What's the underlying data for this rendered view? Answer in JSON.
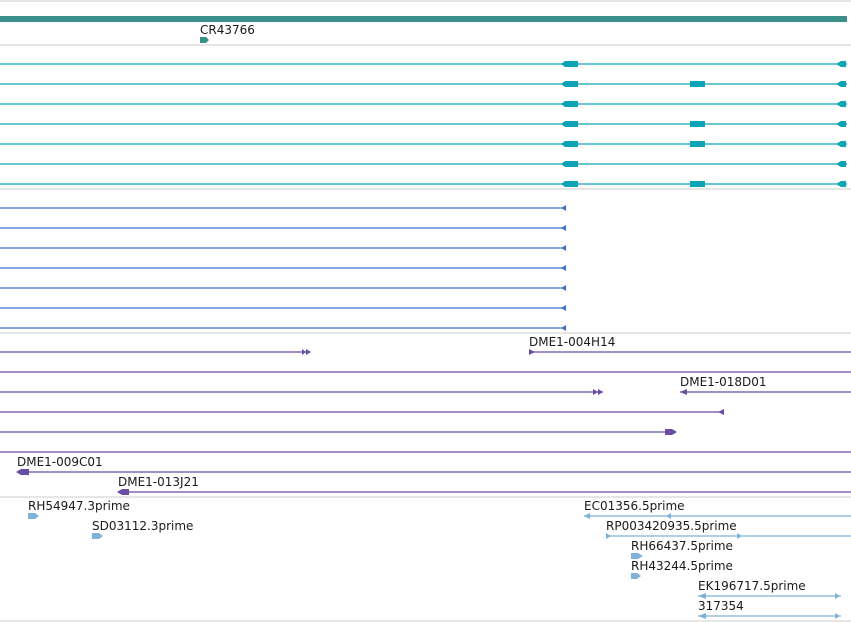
{
  "colors": {
    "gene": "#2e8b88",
    "transcript": "#0fa3b8",
    "mrna_blue": "#3f6fd1",
    "clone": "#6a4ca3",
    "est": "#7fb2d8",
    "divider": "#cccccc"
  },
  "features": {
    "gene_label": "CR43766",
    "clone_labels": {
      "h14": "DME1-004H14",
      "d01": "DME1-018D01",
      "c01": "DME1-009C01",
      "j21": "DME1-013J21"
    },
    "est_labels": {
      "rh54947": "RH54947.3prime",
      "sd03112": "SD03112.3prime",
      "ec01356": "EC01356.5prime",
      "rp003420935": "RP003420935.5prime",
      "rh66437": "RH66437.5prime",
      "rh43244": "RH43244.5prime",
      "ek196717": "EK196717.5prime",
      "n317354": "317354"
    }
  }
}
